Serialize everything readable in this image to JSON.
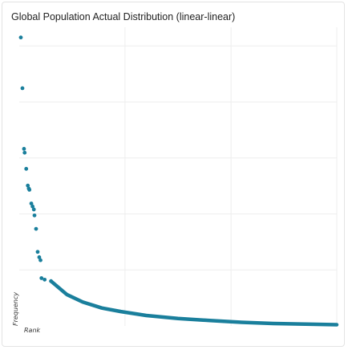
{
  "colors": {
    "marker": "#1a7f9c",
    "grid": "#eeeeee",
    "card_border": "#e3e3e3"
  },
  "chart_data": {
    "type": "scatter",
    "title": "Global Population Actual Distribution (linear-linear)",
    "xlabel": "Rank",
    "ylabel": "Frequency",
    "xlim": [
      0,
      1000
    ],
    "ylim": [
      0,
      1000
    ],
    "grid": true,
    "x_gridlines": [
      333,
      667,
      1000
    ],
    "y_gridlines": [
      187.5,
      375,
      562.5,
      750,
      937.5
    ],
    "points": {
      "x": [
        5,
        10,
        15,
        17,
        22,
        27,
        30,
        32,
        38,
        42,
        46,
        48,
        53,
        58,
        63,
        67,
        70,
        80,
        100
      ],
      "y": [
        966,
        796,
        593,
        580,
        526,
        470,
        460,
        456,
        410,
        400,
        390,
        370,
        325,
        248,
        230,
        220,
        160,
        155,
        150
      ]
    },
    "curve": {
      "x": [
        100,
        150,
        200,
        260,
        320,
        400,
        500,
        600,
        700,
        800,
        900,
        1000
      ],
      "y": [
        150,
        105,
        80,
        60,
        48,
        35,
        25,
        18,
        12,
        8,
        6,
        4
      ]
    }
  }
}
